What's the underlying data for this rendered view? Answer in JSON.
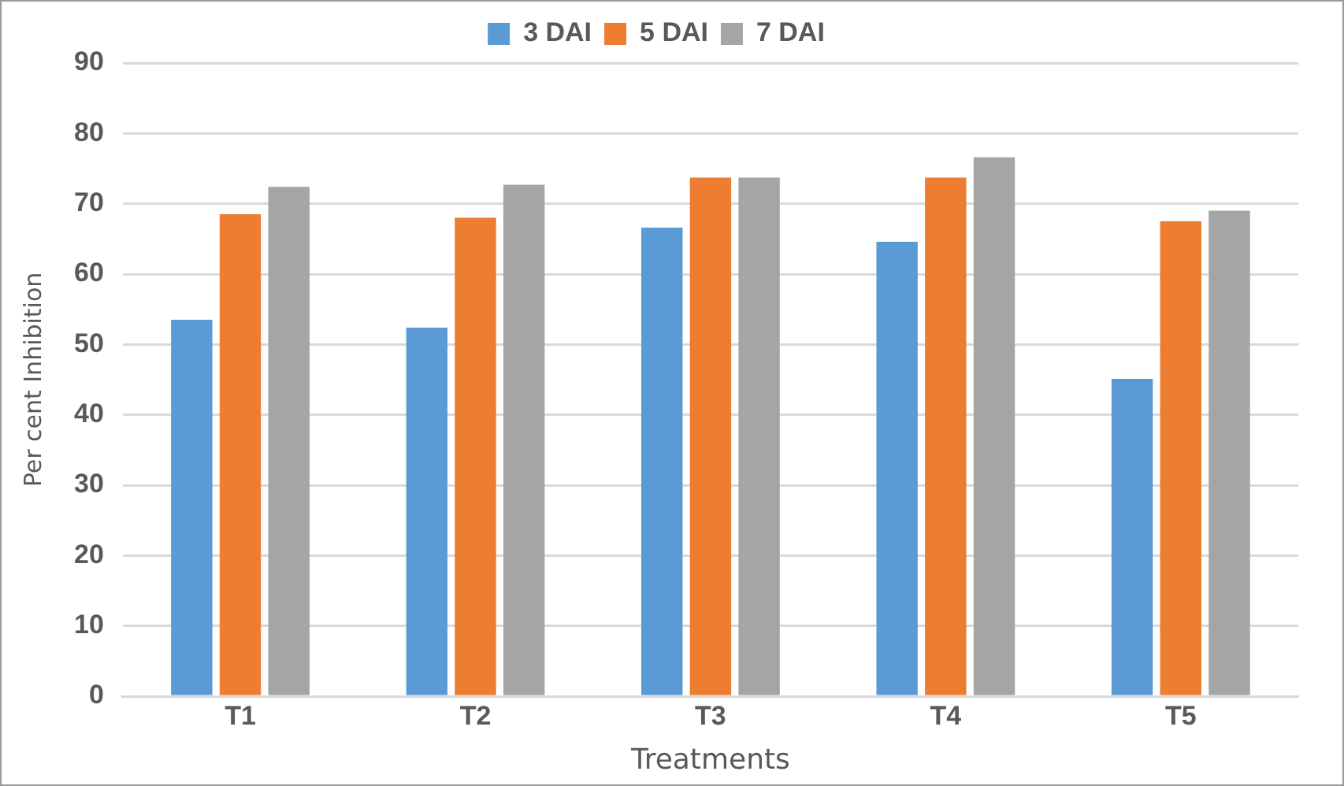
{
  "chart_data": {
    "type": "bar",
    "xlabel": "Treatments",
    "ylabel": "Per cent Inhibition",
    "categories": [
      "T1",
      "T2",
      "T3",
      "T4",
      "T5"
    ],
    "series": [
      {
        "name": "3 DAI",
        "color": "#5b9bd5",
        "values": [
          53.5,
          52.4,
          66.6,
          64.6,
          45.1
        ]
      },
      {
        "name": "5 DAI",
        "color": "#ed7d31",
        "values": [
          68.5,
          68.0,
          73.7,
          73.7,
          67.5
        ]
      },
      {
        "name": "7 DAI",
        "color": "#a5a5a5",
        "values": [
          72.4,
          72.7,
          73.7,
          76.6,
          69.0
        ]
      }
    ],
    "ylim": [
      0,
      90
    ],
    "yticks": [
      0,
      10,
      20,
      30,
      40,
      50,
      60,
      70,
      80,
      90
    ],
    "grid": "y",
    "legend": "top"
  }
}
